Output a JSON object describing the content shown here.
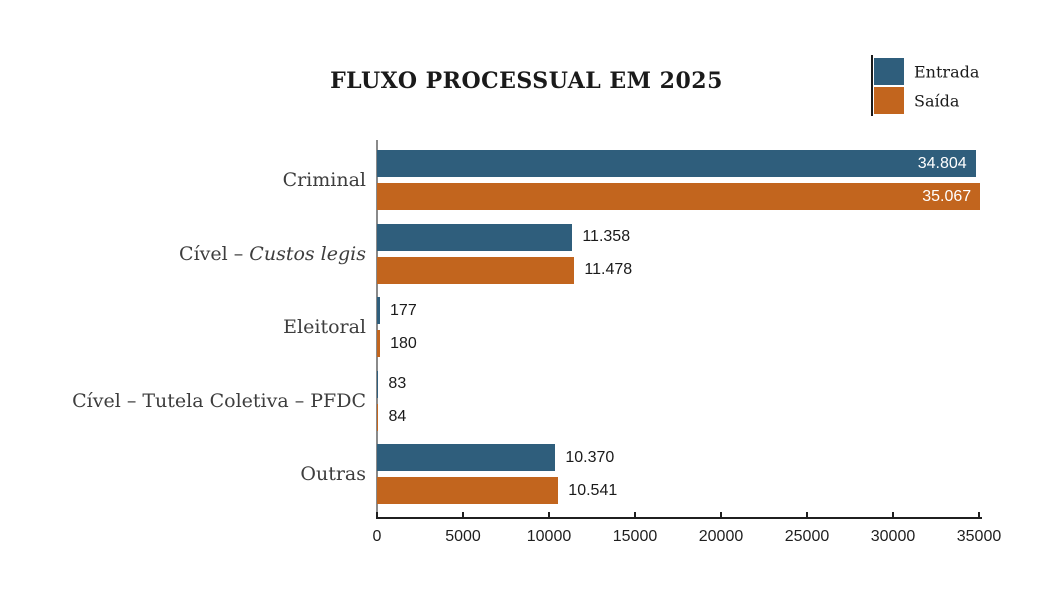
{
  "chart_data": {
    "type": "bar",
    "orientation": "horizontal",
    "title": "FLUXO PROCESSUAL EM 2025",
    "categories": [
      {
        "parts": [
          {
            "text": "Criminal",
            "italic": false
          }
        ]
      },
      {
        "parts": [
          {
            "text": "Cível – ",
            "italic": false
          },
          {
            "text": "Custos legis",
            "italic": true
          }
        ]
      },
      {
        "parts": [
          {
            "text": "Eleitoral",
            "italic": false
          }
        ]
      },
      {
        "parts": [
          {
            "text": "Cível – Tutela Coletiva – PFDC",
            "italic": false
          }
        ]
      },
      {
        "parts": [
          {
            "text": "Outras",
            "italic": false
          }
        ]
      }
    ],
    "series": [
      {
        "name": "Entrada",
        "color": "#2F5E7C",
        "values": [
          34804,
          11358,
          177,
          83,
          10370
        ],
        "value_labels": [
          "34.804",
          "11.358",
          "177",
          "83",
          "10.370"
        ]
      },
      {
        "name": "Saída",
        "color": "#C2651E",
        "values": [
          35067,
          11478,
          180,
          84,
          10541
        ],
        "value_labels": [
          "35.067",
          "11.478",
          "180",
          "84",
          "10.541"
        ]
      }
    ],
    "value_labels_inside_bar": [
      true,
      false,
      false,
      false,
      false
    ],
    "xlim": [
      0,
      35000
    ],
    "xticks": [
      0,
      5000,
      10000,
      15000,
      20000,
      25000,
      30000,
      35000
    ],
    "xtick_labels": [
      "0",
      "5000",
      "10000",
      "15000",
      "20000",
      "25000",
      "30000",
      "35000"
    ],
    "legend_position": "top-right",
    "grid": false,
    "colors": {
      "entrada": "#2F5E7C",
      "saida": "#C2651E",
      "title_text": "#1a1a1a",
      "category_text": "#3d3d3d",
      "axis_left": "#8a8a8a",
      "axis_bottom": "#1f1f1f",
      "inside_label_text": "#ffffff"
    }
  }
}
